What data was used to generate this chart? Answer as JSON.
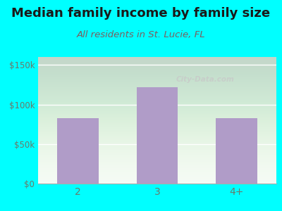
{
  "title": "Median family income by family size",
  "subtitle": "All residents in St. Lucie, FL",
  "categories": [
    "2",
    "3",
    "4+"
  ],
  "values": [
    83000,
    122000,
    83000
  ],
  "bar_color": "#b09cc8",
  "outer_bg": "#00FFFF",
  "title_color": "#1a1a1a",
  "subtitle_color": "#7a6060",
  "axis_label_color": "#6a7a6a",
  "yticks": [
    0,
    50000,
    100000,
    150000
  ],
  "ytick_labels": [
    "$0",
    "$50k",
    "$100k",
    "$150k"
  ],
  "ylim": [
    0,
    160000
  ],
  "watermark": "City-Data.com",
  "title_fontsize": 13,
  "subtitle_fontsize": 9.5
}
